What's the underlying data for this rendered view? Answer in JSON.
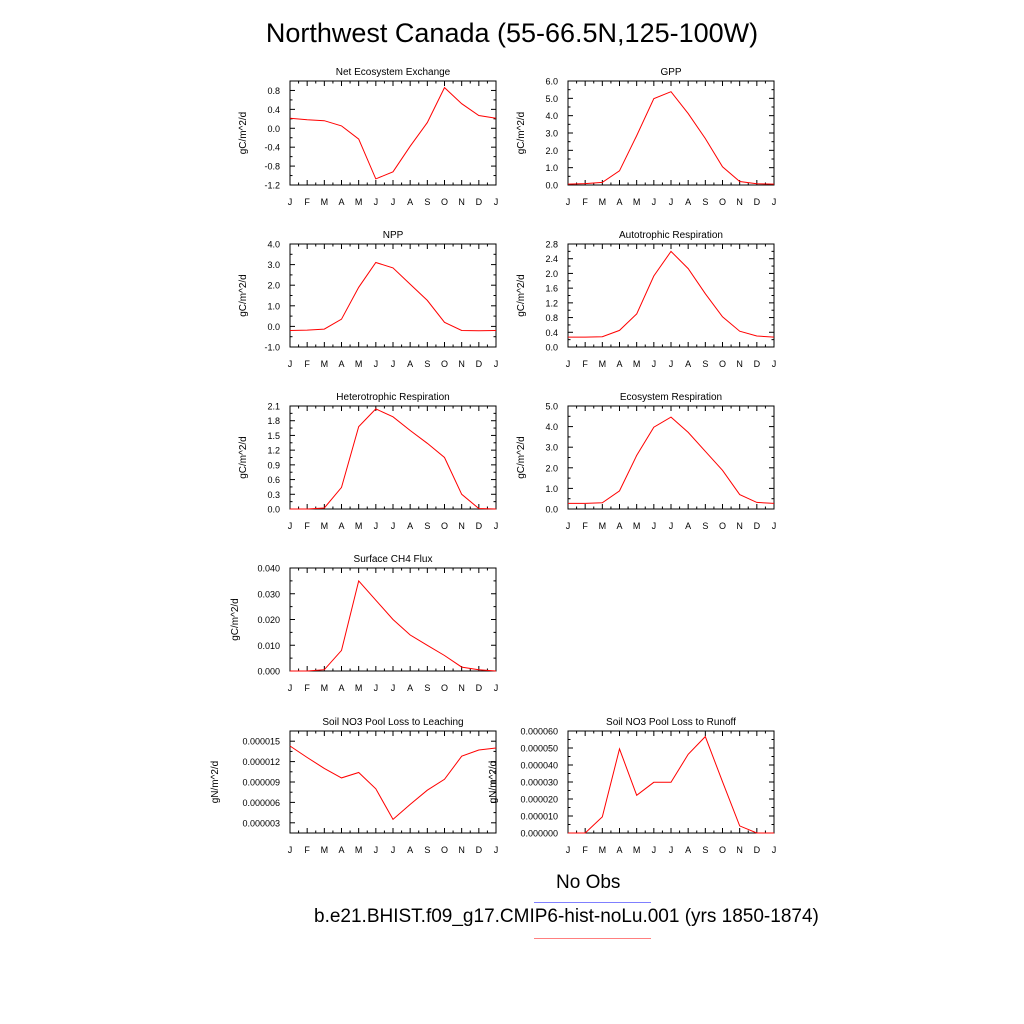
{
  "title": "Northwest Canada (55-66.5N,125-100W)",
  "legend": {
    "items": [
      {
        "label": "No Obs",
        "color": "#7f7fff"
      },
      {
        "label": "b.e21.BHIST.f09_g17.CMIP6-hist-noLu.001 (yrs 1850-1874)",
        "color": "#ff7f7f"
      }
    ]
  },
  "chart_data": [
    {
      "type": "line",
      "title": "Net Ecosystem Exchange",
      "xlabel": "",
      "ylabel": "gC/m^2/d",
      "categories": [
        "J",
        "F",
        "M",
        "A",
        "M",
        "J",
        "J",
        "A",
        "S",
        "O",
        "N",
        "D",
        "J"
      ],
      "ylim": [
        -1.2,
        1.0
      ],
      "yticks": [
        "-1.2",
        "-0.8",
        "-0.4",
        "0.0",
        "0.4",
        "0.8"
      ],
      "grid": false,
      "series": [
        {
          "color": "#ff0000",
          "values": [
            0.21,
            0.18,
            0.16,
            0.05,
            -0.23,
            -1.07,
            -0.92,
            -0.38,
            0.12,
            0.86,
            0.52,
            0.27,
            0.21
          ]
        }
      ]
    },
    {
      "type": "line",
      "title": "GPP",
      "xlabel": "",
      "ylabel": "gC/m^2/d",
      "categories": [
        "J",
        "F",
        "M",
        "A",
        "M",
        "J",
        "J",
        "A",
        "S",
        "O",
        "N",
        "D",
        "J"
      ],
      "ylim": [
        0.0,
        6.0
      ],
      "yticks": [
        "0.0",
        "1.0",
        "2.0",
        "3.0",
        "4.0",
        "5.0",
        "6.0"
      ],
      "grid": false,
      "series": [
        {
          "color": "#ff0000",
          "values": [
            0.05,
            0.08,
            0.15,
            0.82,
            2.85,
            4.98,
            5.38,
            4.12,
            2.68,
            1.05,
            0.2,
            0.07,
            0.05
          ]
        }
      ]
    },
    {
      "type": "line",
      "title": "NPP",
      "xlabel": "",
      "ylabel": "gC/m^2/d",
      "categories": [
        "J",
        "F",
        "M",
        "A",
        "M",
        "J",
        "J",
        "A",
        "S",
        "O",
        "N",
        "D",
        "J"
      ],
      "ylim": [
        -1.0,
        4.0
      ],
      "yticks": [
        "-1.0",
        "0.0",
        "1.0",
        "2.0",
        "3.0",
        "4.0"
      ],
      "grid": false,
      "series": [
        {
          "color": "#ff0000",
          "values": [
            -0.2,
            -0.18,
            -0.13,
            0.35,
            1.9,
            3.1,
            2.84,
            2.05,
            1.26,
            0.2,
            -0.2,
            -0.21,
            -0.2
          ]
        }
      ]
    },
    {
      "type": "line",
      "title": "Autotrophic Respiration",
      "xlabel": "",
      "ylabel": "gC/m^2/d",
      "categories": [
        "J",
        "F",
        "M",
        "A",
        "M",
        "J",
        "J",
        "A",
        "S",
        "O",
        "N",
        "D",
        "J"
      ],
      "ylim": [
        0.0,
        2.8
      ],
      "yticks": [
        "0.0",
        "0.4",
        "0.8",
        "1.2",
        "1.6",
        "2.0",
        "2.4",
        "2.8"
      ],
      "grid": false,
      "series": [
        {
          "color": "#ff0000",
          "values": [
            0.27,
            0.27,
            0.28,
            0.45,
            0.9,
            1.93,
            2.6,
            2.13,
            1.45,
            0.82,
            0.43,
            0.3,
            0.27
          ]
        }
      ]
    },
    {
      "type": "line",
      "title": "Heterotrophic Respiration",
      "xlabel": "",
      "ylabel": "gC/m^2/d",
      "categories": [
        "J",
        "F",
        "M",
        "A",
        "M",
        "J",
        "J",
        "A",
        "S",
        "O",
        "N",
        "D",
        "J"
      ],
      "ylim": [
        0.0,
        2.1
      ],
      "yticks": [
        "0.0",
        "0.3",
        "0.6",
        "0.9",
        "1.2",
        "1.5",
        "1.8",
        "2.1"
      ],
      "grid": false,
      "series": [
        {
          "color": "#ff0000",
          "values": [
            0.0,
            0.0,
            0.02,
            0.44,
            1.68,
            2.04,
            1.88,
            1.6,
            1.34,
            1.05,
            0.3,
            0.01,
            0.0
          ]
        }
      ]
    },
    {
      "type": "line",
      "title": "Ecosystem Respiration",
      "xlabel": "",
      "ylabel": "gC/m^2/d",
      "categories": [
        "J",
        "F",
        "M",
        "A",
        "M",
        "J",
        "J",
        "A",
        "S",
        "O",
        "N",
        "D",
        "J"
      ],
      "ylim": [
        0.0,
        5.0
      ],
      "yticks": [
        "0.0",
        "1.0",
        "2.0",
        "3.0",
        "4.0",
        "5.0"
      ],
      "grid": false,
      "series": [
        {
          "color": "#ff0000",
          "values": [
            0.27,
            0.27,
            0.3,
            0.88,
            2.6,
            3.97,
            4.46,
            3.72,
            2.8,
            1.88,
            0.7,
            0.32,
            0.27
          ]
        }
      ]
    },
    {
      "type": "line",
      "title": "Surface CH4 Flux",
      "xlabel": "",
      "ylabel": "gC/m^2/d",
      "categories": [
        "J",
        "F",
        "M",
        "A",
        "M",
        "J",
        "J",
        "A",
        "S",
        "O",
        "N",
        "D",
        "J"
      ],
      "ylim": [
        0.0,
        0.04
      ],
      "yticks": [
        "0.000",
        "0.010",
        "0.020",
        "0.030",
        "0.040"
      ],
      "grid": false,
      "series": [
        {
          "color": "#ff0000",
          "values": [
            0.0,
            0.0,
            0.0005,
            0.008,
            0.035,
            0.0275,
            0.02,
            0.014,
            0.01,
            0.006,
            0.0015,
            0.0005,
            0.0
          ]
        }
      ]
    },
    {
      "type": "line",
      "title": "Soil NO3 Pool Loss to Leaching",
      "xlabel": "",
      "ylabel": "gN/m^2/d",
      "categories": [
        "J",
        "F",
        "M",
        "A",
        "M",
        "J",
        "J",
        "A",
        "S",
        "O",
        "N",
        "D",
        "J"
      ],
      "ylim": [
        1.5e-06,
        1.65e-05
      ],
      "yticks": [
        "0.000003",
        "0.000006",
        "0.000009",
        "0.000012",
        "0.000015"
      ],
      "grid": false,
      "series": [
        {
          "color": "#ff0000",
          "values": [
            1.43e-05,
            1.26e-05,
            1.1e-05,
            9.6e-06,
            1.04e-05,
            8e-06,
            3.5e-06,
            5.7e-06,
            7.8e-06,
            9.4e-06,
            1.28e-05,
            1.37e-05,
            1.4e-05
          ]
        }
      ]
    },
    {
      "type": "line",
      "title": "Soil NO3 Pool Loss to Runoff",
      "xlabel": "",
      "ylabel": "gN/m^2/d",
      "categories": [
        "J",
        "F",
        "M",
        "A",
        "M",
        "J",
        "J",
        "A",
        "S",
        "O",
        "N",
        "D",
        "J"
      ],
      "ylim": [
        0.0,
        6e-05
      ],
      "yticks": [
        "0.000000",
        "0.000010",
        "0.000020",
        "0.000030",
        "0.000040",
        "0.000050",
        "0.000060"
      ],
      "grid": false,
      "series": [
        {
          "color": "#ff0000",
          "values": [
            0.0,
            0.0,
            9.5e-06,
            4.95e-05,
            2.22e-05,
            2.98e-05,
            2.98e-05,
            4.63e-05,
            5.67e-05,
            3.02e-05,
            4.2e-06,
            0.0,
            0.0
          ]
        }
      ]
    }
  ]
}
